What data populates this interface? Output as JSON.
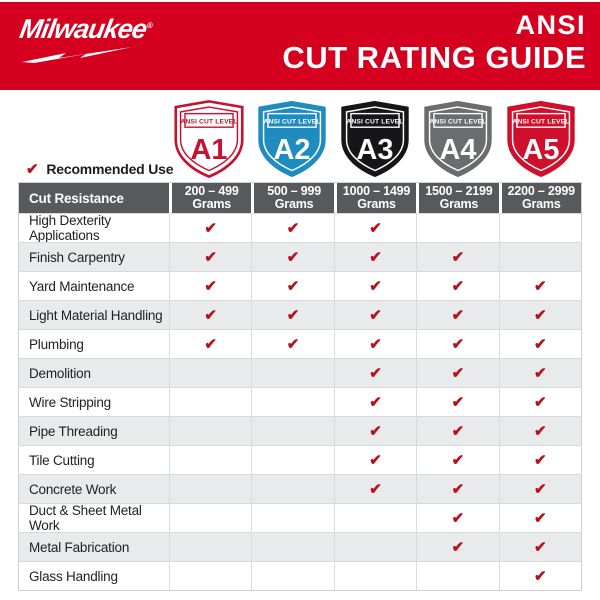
{
  "banner": {
    "brand": "Milwaukee",
    "reg": "®",
    "title_line1": "ANSI",
    "title_line2": "CUT RATING GUIDE",
    "bg": "#d5001f"
  },
  "levels": [
    {
      "id": "A1",
      "label": "ANSI CUT LEVEL",
      "fill": "#ffffff",
      "accent": "#c41230"
    },
    {
      "id": "A2",
      "label": "ANSI CUT LEVEL",
      "fill": "#1f8cc0",
      "accent": "#ffffff"
    },
    {
      "id": "A3",
      "label": "ANSI CUT LEVEL",
      "fill": "#161618",
      "accent": "#ffffff"
    },
    {
      "id": "A4",
      "label": "ANSI CUT LEVEL",
      "fill": "#6b6c6e",
      "accent": "#ffffff"
    },
    {
      "id": "A5",
      "label": "ANSI CUT LEVEL",
      "fill": "#cf0f2c",
      "accent": "#ffffff"
    }
  ],
  "recommended": {
    "label": "Recommended Use"
  },
  "table": {
    "corner_label": "Cut Resistance",
    "check_glyph": "✔",
    "columns": [
      {
        "range": "200 – 499",
        "unit": "Grams"
      },
      {
        "range": "500 – 999",
        "unit": "Grams"
      },
      {
        "range": "1000 – 1499",
        "unit": "Grams"
      },
      {
        "range": "1500 – 2199",
        "unit": "Grams"
      },
      {
        "range": "2200 – 2999",
        "unit": "Grams"
      }
    ],
    "rows": [
      {
        "label": "High Dexterity Applications",
        "checks": [
          true,
          true,
          true,
          false,
          false
        ]
      },
      {
        "label": "Finish Carpentry",
        "checks": [
          true,
          true,
          true,
          true,
          false
        ]
      },
      {
        "label": "Yard Maintenance",
        "checks": [
          true,
          true,
          true,
          true,
          true
        ]
      },
      {
        "label": "Light Material Handling",
        "checks": [
          true,
          true,
          true,
          true,
          true
        ]
      },
      {
        "label": "Plumbing",
        "checks": [
          true,
          true,
          true,
          true,
          true
        ]
      },
      {
        "label": "Demolition",
        "checks": [
          false,
          false,
          true,
          true,
          true
        ]
      },
      {
        "label": "Wire Stripping",
        "checks": [
          false,
          false,
          true,
          true,
          true
        ]
      },
      {
        "label": "Pipe Threading",
        "checks": [
          false,
          false,
          true,
          true,
          true
        ]
      },
      {
        "label": "Tile Cutting",
        "checks": [
          false,
          false,
          true,
          true,
          true
        ]
      },
      {
        "label": "Concrete Work",
        "checks": [
          false,
          false,
          true,
          true,
          true
        ]
      },
      {
        "label": "Duct & Sheet Metal Work",
        "checks": [
          false,
          false,
          false,
          true,
          true
        ]
      },
      {
        "label": "Metal Fabrication",
        "checks": [
          false,
          false,
          false,
          true,
          true
        ]
      },
      {
        "label": "Glass Handling",
        "checks": [
          false,
          false,
          false,
          false,
          true
        ]
      }
    ]
  },
  "colors": {
    "banner_red": "#d5001f",
    "check_red": "#b5121d",
    "header_gray": "#58595c",
    "alt_row_gray": "#e9eaeb",
    "grid_line": "#d9dadc"
  }
}
